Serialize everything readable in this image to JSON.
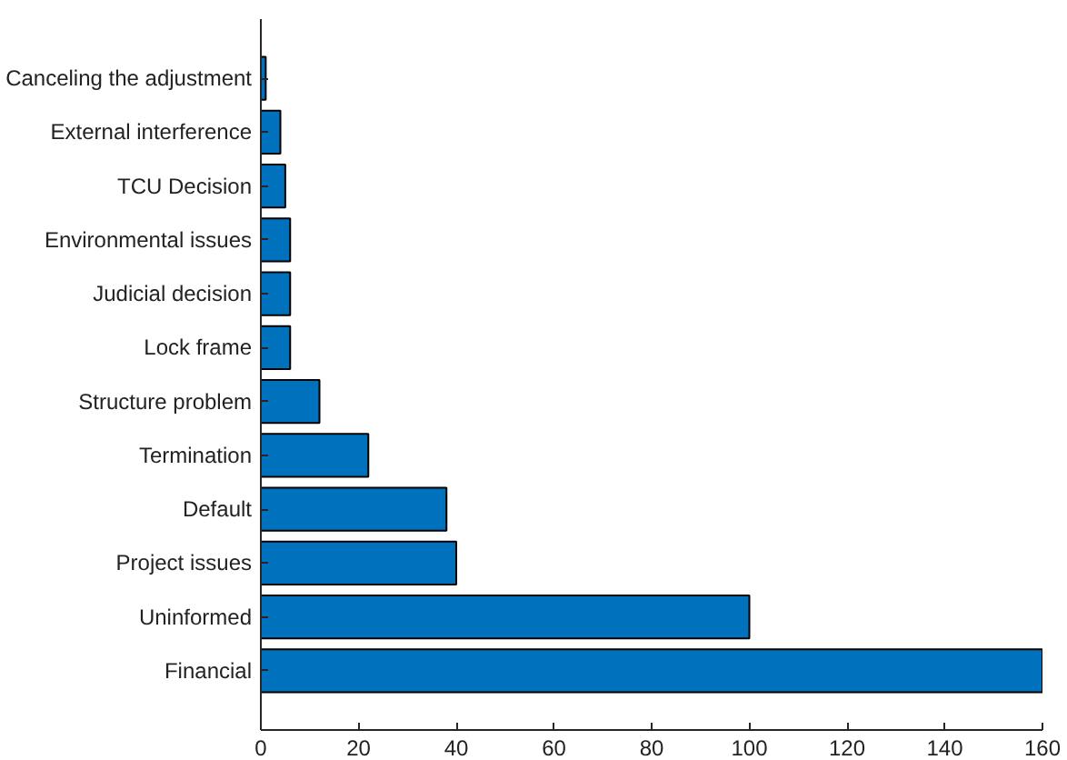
{
  "chart_data": {
    "type": "bar",
    "orientation": "horizontal",
    "categories": [
      "Canceling the adjustment",
      "External interference",
      "TCU Decision",
      "Environmental issues",
      "Judicial decision",
      "Lock frame",
      "Structure problem",
      "Termination",
      "Default",
      "Project issues",
      "Uninformed",
      "Financial"
    ],
    "values": [
      1,
      4,
      5,
      6,
      6,
      6,
      12,
      22,
      38,
      40,
      100,
      160
    ],
    "color": "#0072bd",
    "xlim": [
      0,
      160
    ],
    "xticks": [
      0,
      20,
      40,
      60,
      80,
      100,
      120,
      140,
      160
    ],
    "grid": false
  }
}
